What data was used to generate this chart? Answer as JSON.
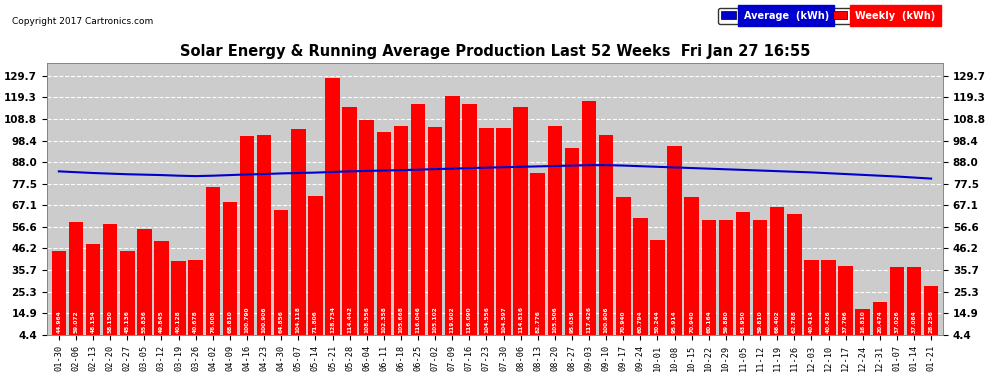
{
  "title": "Solar Energy & Running Average Production Last 52 Weeks  Fri Jan 27 16:55",
  "copyright": "Copyright 2017 Cartronics.com",
  "bar_color": "#ff0000",
  "avg_line_color": "#0000cc",
  "background_color": "#ffffff",
  "plot_bg_color": "#cccccc",
  "grid_color": "#ffffff",
  "yticks": [
    4.4,
    14.9,
    25.3,
    35.7,
    46.2,
    56.6,
    67.1,
    77.5,
    88.0,
    98.4,
    108.8,
    119.3,
    129.7
  ],
  "categories": [
    "01-30",
    "02-06",
    "02-13",
    "02-20",
    "02-27",
    "03-05",
    "03-12",
    "03-19",
    "03-26",
    "04-02",
    "04-09",
    "04-16",
    "04-23",
    "04-30",
    "05-07",
    "05-14",
    "05-21",
    "05-28",
    "06-04",
    "06-11",
    "06-18",
    "06-25",
    "07-02",
    "07-09",
    "07-16",
    "07-23",
    "07-30",
    "08-06",
    "08-13",
    "08-20",
    "08-27",
    "09-03",
    "09-10",
    "09-17",
    "09-24",
    "10-01",
    "10-08",
    "10-15",
    "10-22",
    "10-29",
    "11-05",
    "11-12",
    "11-19",
    "11-26",
    "12-03",
    "12-10",
    "12-17",
    "12-24",
    "12-31",
    "01-07",
    "01-14",
    "01-21"
  ],
  "weekly_values": [
    44.964,
    59.072,
    48.154,
    58.15,
    45.136,
    55.836,
    49.845,
    40.128,
    40.678,
    76.008,
    68.81,
    100.79,
    100.906,
    64.856,
    104.118,
    71.806,
    128.734,
    114.442,
    108.556,
    102.358,
    105.668,
    116.046,
    105.102,
    119.902,
    116.09,
    104.556,
    104.597,
    114.816,
    82.776,
    105.506,
    95.036,
    117.426,
    100.906,
    70.94,
    60.794,
    50.244,
    95.914,
    70.94,
    60.164,
    59.88,
    63.95,
    59.81,
    66.402,
    62.788,
    40.414,
    40.426,
    37.796,
    16.81,
    20.474,
    37.026,
    37.084,
    28.256
  ],
  "avg_values": [
    83.5,
    83.1,
    82.7,
    82.4,
    82.1,
    81.9,
    81.7,
    81.4,
    81.2,
    81.4,
    81.7,
    82.0,
    82.2,
    82.5,
    82.7,
    82.9,
    83.2,
    83.5,
    83.7,
    83.9,
    84.1,
    84.3,
    84.6,
    84.8,
    85.1,
    85.3,
    85.5,
    85.7,
    85.9,
    86.1,
    86.3,
    86.5,
    86.5,
    86.3,
    86.0,
    85.7,
    85.4,
    85.1,
    84.8,
    84.5,
    84.2,
    83.9,
    83.6,
    83.3,
    83.0,
    82.6,
    82.2,
    81.8,
    81.4,
    81.0,
    80.5,
    80.0
  ],
  "legend_avg_bg": "#0000cc",
  "legend_weekly_bg": "#ff0000",
  "legend_avg_label": "Average  (kWh)",
  "legend_weekly_label": "Weekly  (kWh)"
}
